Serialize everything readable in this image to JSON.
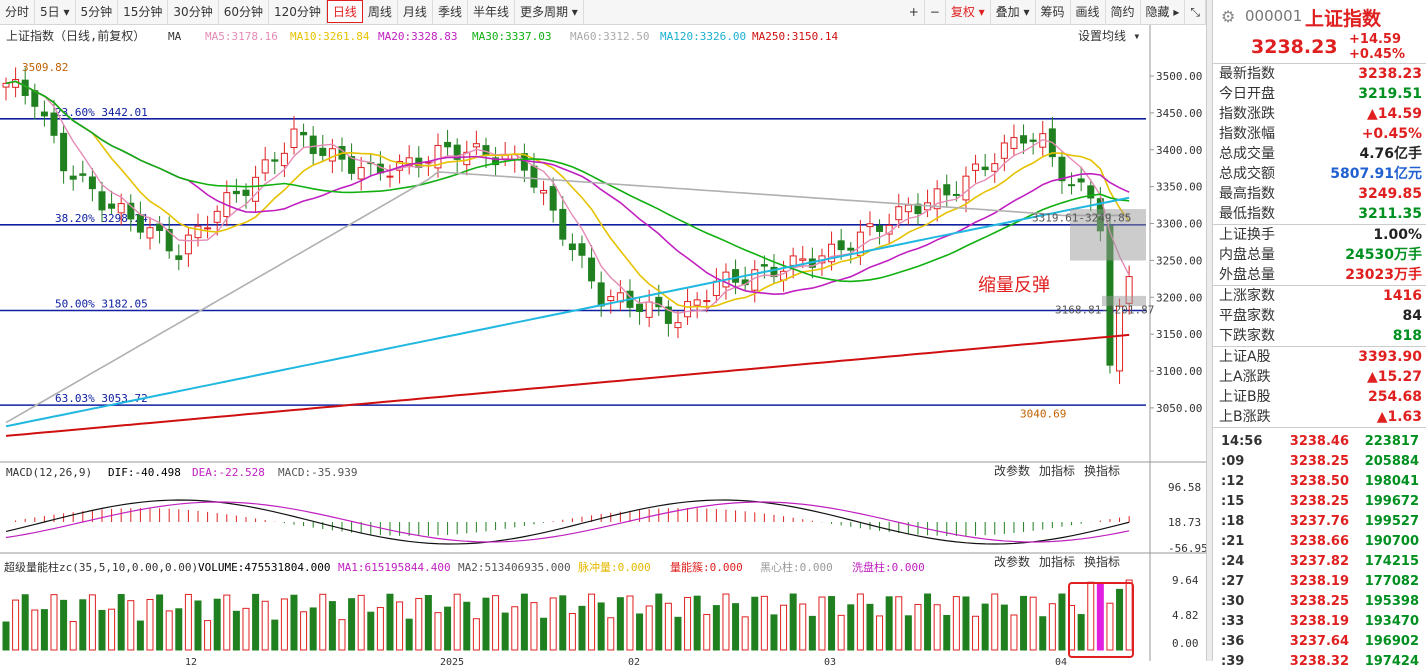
{
  "toolbar": {
    "left": [
      "分时",
      "5日 ▾",
      "5分钟",
      "15分钟",
      "30分钟",
      "60分钟",
      "120分钟",
      "日线",
      "周线",
      "月线",
      "季线",
      "半年线",
      "更多周期 ▾"
    ],
    "active": "日线",
    "right": [
      "+",
      "−",
      "复权 ▾",
      "叠加 ▾",
      "筹码",
      "画线",
      "简约",
      "隐藏 ▸",
      "⤡"
    ]
  },
  "main_legend": {
    "title": "上证指数（日线,前复权）",
    "ma": "MA",
    "ma5": "MA5:3178.16",
    "ma10": "MA10:3261.84",
    "ma20": "MA20:3328.83",
    "ma30": "MA30:3337.03",
    "ma60": "MA60:3312.50",
    "ma120": "MA120:3326.00",
    "ma250": "MA250:3150.14",
    "settings": "设置均线 ▾"
  },
  "fib": [
    {
      "label": "23.60% 3442.01"
    },
    {
      "label": "38.20% 3298.24"
    },
    {
      "label": "50.00% 3182.05"
    },
    {
      "label": "63.03% 3053.72"
    }
  ],
  "annotations": {
    "high": "3509.82",
    "low": "3040.69",
    "box1": "3319.61-3249.85",
    "box2": "3168.81-3201.87",
    "note": "缩量反弹"
  },
  "price_axis": [
    "3500.00",
    "3450.00",
    "3400.00",
    "3350.00",
    "3300.00",
    "3250.00",
    "3200.00",
    "3150.00",
    "3100.00",
    "3050.00"
  ],
  "macd": {
    "legend": "MACD(12,26,9)",
    "dif": "DIF:-40.498",
    "dea": "DEA:-22.528",
    "macd": "MACD:-35.939",
    "axis": [
      "96.58",
      "18.73",
      "-56.95"
    ]
  },
  "vol": {
    "legend": "超级量能柱zc(35,5,10,0.00,0.00)",
    "volume": "VOLUME:475531804.000",
    "ma1": "MA1:615195844.400",
    "ma2": "MA2:513406935.000",
    "k1": "脉冲量:0.000",
    "k2": "量能簇:0.000",
    "k3": "黑心柱:0.000",
    "k4": "洗盘柱:0.000",
    "axis": [
      "9.64",
      "4.82",
      "0.00"
    ]
  },
  "panel_tools": [
    "改参数",
    "加指标",
    "换指标"
  ],
  "x_labels": [
    "12",
    "2025",
    "02",
    "03",
    "04"
  ],
  "quote": {
    "code": "000001",
    "name": "上证指数",
    "price": "3238.23",
    "chg": "+14.59",
    "pct": "+0.45%",
    "rows": [
      {
        "k": "最新指数",
        "v": "3238.23",
        "c": "red"
      },
      {
        "k": "今日开盘",
        "v": "3219.51",
        "c": "grn"
      },
      {
        "k": "指数涨跌",
        "v": "▲14.59",
        "c": "red"
      },
      {
        "k": "指数涨幅",
        "v": "+0.45%",
        "c": "red"
      },
      {
        "k": "总成交量",
        "v": "4.76亿手",
        "c": "blk"
      },
      {
        "k": "总成交额",
        "v": "5807.91亿元",
        "c": "blu"
      },
      {
        "k": "最高指数",
        "v": "3249.85",
        "c": "red"
      },
      {
        "k": "最低指数",
        "v": "3211.35",
        "c": "grn"
      }
    ],
    "rows2": [
      {
        "k": "上证换手",
        "v": "1.00%",
        "c": "blk"
      },
      {
        "k": "内盘总量",
        "v": "24530万手",
        "c": "grn"
      },
      {
        "k": "外盘总量",
        "v": "23023万手",
        "c": "red"
      }
    ],
    "rows3": [
      {
        "k": "上涨家数",
        "v": "1416",
        "c": "red"
      },
      {
        "k": "平盘家数",
        "v": "84",
        "c": "blk"
      },
      {
        "k": "下跌家数",
        "v": "818",
        "c": "grn"
      }
    ],
    "rows4": [
      {
        "k": "上证A股",
        "v": "3393.90",
        "c": "red"
      },
      {
        "k": "上A涨跌",
        "v": "▲15.27",
        "c": "red"
      },
      {
        "k": "上证B股",
        "v": "254.68",
        "c": "red"
      },
      {
        "k": "上B涨跌",
        "v": "▲1.63",
        "c": "red"
      }
    ],
    "ticks": [
      {
        "t": "14:56",
        "p": "3238.46",
        "q": "223817"
      },
      {
        "t": ":09",
        "p": "3238.25",
        "q": "205884"
      },
      {
        "t": ":12",
        "p": "3238.50",
        "q": "198041"
      },
      {
        "t": ":15",
        "p": "3238.25",
        "q": "199672"
      },
      {
        "t": ":18",
        "p": "3237.76",
        "q": "199527"
      },
      {
        "t": ":21",
        "p": "3238.66",
        "q": "190700"
      },
      {
        "t": ":24",
        "p": "3237.82",
        "q": "174215"
      },
      {
        "t": ":27",
        "p": "3238.19",
        "q": "177082"
      },
      {
        "t": ":30",
        "p": "3238.25",
        "q": "195398"
      },
      {
        "t": ":33",
        "p": "3238.19",
        "q": "193470"
      },
      {
        "t": ":36",
        "p": "3237.64",
        "q": "196902"
      },
      {
        "t": ":39",
        "p": "3238.32",
        "q": "197424"
      }
    ]
  }
}
